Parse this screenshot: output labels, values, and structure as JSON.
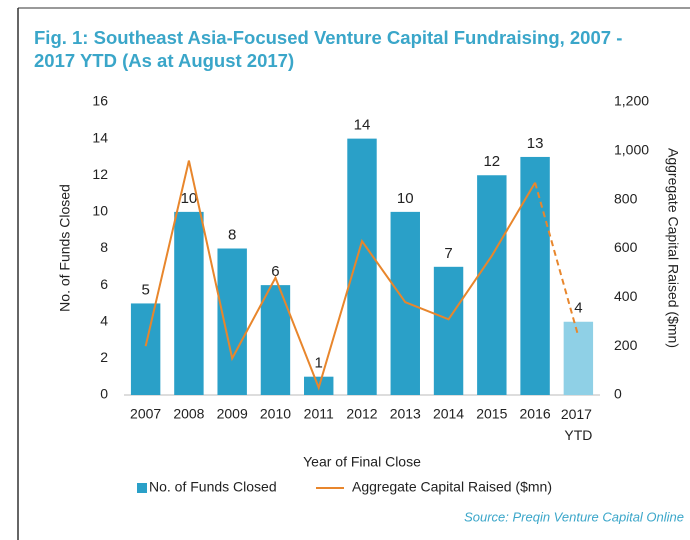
{
  "chart_data": {
    "type": "bar_line",
    "title": "Fig. 1: Southeast Asia-Focused Venture Capital Fundraising, 2007 - 2017 YTD (As at August 2017)",
    "x_label": "Year of Final Close",
    "y_label": "No. of Funds Closed",
    "y2_label": "Aggregate Capital Raised ($mn)",
    "source": "Source:  Preqin Venture Capital Online",
    "categories": [
      "2007",
      "2008",
      "2009",
      "2010",
      "2011",
      "2012",
      "2013",
      "2014",
      "2015",
      "2016",
      "2017 YTD"
    ],
    "series": [
      {
        "name": "No. of Funds Closed",
        "type": "bar",
        "colors": [
          "#2aa0c8",
          "#2aa0c8",
          "#2aa0c8",
          "#2aa0c8",
          "#2aa0c8",
          "#2aa0c8",
          "#2aa0c8",
          "#2aa0c8",
          "#2aa0c8",
          "#2aa0c8",
          "#8fd0e6"
        ],
        "values": [
          5,
          10,
          8,
          6,
          1,
          14,
          10,
          7,
          12,
          13,
          4
        ]
      },
      {
        "name": "Aggregate Capital Raised ($mn)",
        "type": "line",
        "axis": "y2",
        "color": "#e8862c",
        "dashed_last_segment": true,
        "values": [
          200,
          960,
          150,
          480,
          30,
          630,
          380,
          310,
          570,
          870,
          240
        ]
      }
    ],
    "ylim": [
      0,
      16
    ],
    "yticks": [
      0,
      2,
      4,
      6,
      8,
      10,
      12,
      14,
      16
    ],
    "y2lim": [
      0,
      1200
    ],
    "y2ticks": [
      0,
      200,
      400,
      600,
      800,
      {
        "value": 1000,
        "label": "1,000"
      },
      {
        "value": 1200,
        "label": "1,200"
      }
    ],
    "legend": "bottom"
  }
}
